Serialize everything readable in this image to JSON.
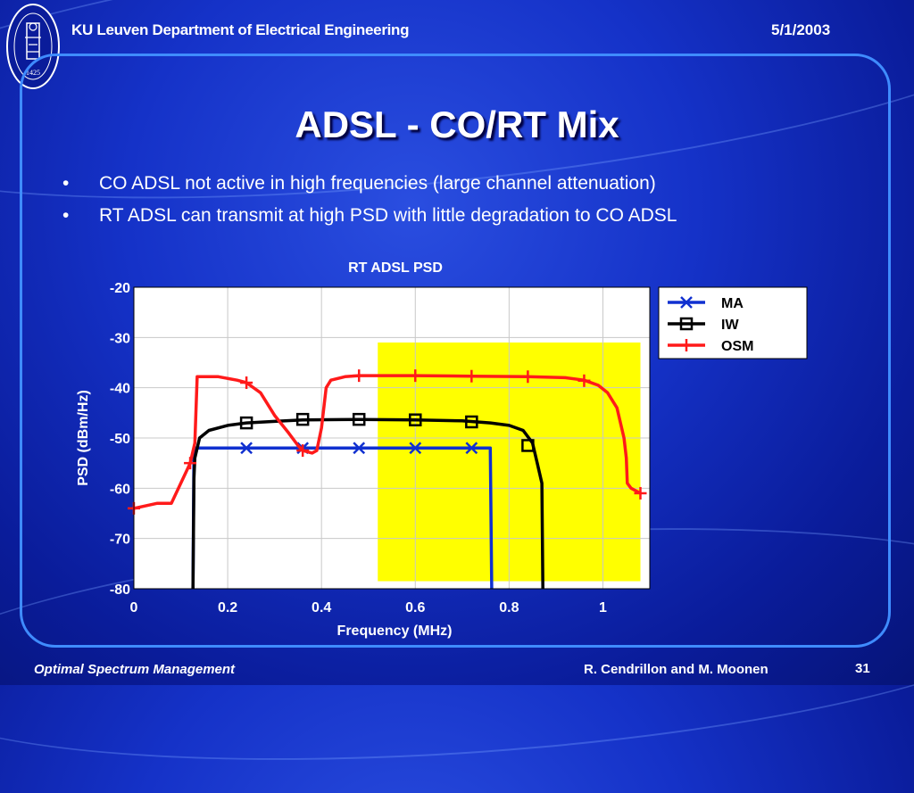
{
  "header": {
    "title": "KU Leuven Department of Electrical Engineering",
    "date": "5/1/2003",
    "seal_text": "1425"
  },
  "slide": {
    "title": "ADSL - CO/RT Mix",
    "bullets": [
      "CO ADSL not active in high frequencies (large channel attenuation)",
      "RT ADSL can transmit at high PSD with little degradation to CO ADSL"
    ]
  },
  "footer": {
    "left": "Optimal Spectrum Management",
    "right": "R. Cendrillon and M. Moonen",
    "page": "31"
  },
  "colors": {
    "ma": "#1030d0",
    "iw": "#000000",
    "osm": "#ff1a1a",
    "highlight": "#ffff00",
    "frame": "#3f8cff"
  },
  "chart_data": {
    "type": "line",
    "title": "RT ADSL PSD",
    "xlabel": "Frequency (MHz)",
    "ylabel": "PSD (dBm/Hz)",
    "xlim": [
      0,
      1.1
    ],
    "ylim": [
      -80,
      -20
    ],
    "xticks": [
      0,
      0.2,
      0.4,
      0.6,
      0.8,
      1
    ],
    "xtick_labels": [
      "0",
      "0.2",
      "0.4",
      "0.6",
      "0.8",
      "1"
    ],
    "yticks": [
      -80,
      -70,
      -60,
      -50,
      -40,
      -30,
      -20
    ],
    "ytick_labels": [
      "-80",
      "-70",
      "-60",
      "-50",
      "-40",
      "-30",
      "-20"
    ],
    "grid": true,
    "legend_position": "top-right, outside plot",
    "highlight_region": {
      "x": [
        0.52,
        1.08
      ],
      "y": [
        -78.5,
        -31
      ]
    },
    "series": [
      {
        "name": "MA",
        "marker": "x",
        "line": [
          [
            0.126,
            -80
          ],
          [
            0.128,
            -52
          ],
          [
            0.76,
            -52
          ],
          [
            0.763,
            -80
          ]
        ],
        "markers": [
          [
            0.24,
            -52
          ],
          [
            0.36,
            -52
          ],
          [
            0.48,
            -52
          ],
          [
            0.6,
            -52
          ],
          [
            0.72,
            -52
          ]
        ]
      },
      {
        "name": "IW",
        "marker": "square",
        "line": [
          [
            0.126,
            -80
          ],
          [
            0.128,
            -58
          ],
          [
            0.13,
            -54
          ],
          [
            0.14,
            -50
          ],
          [
            0.16,
            -48.5
          ],
          [
            0.2,
            -47.5
          ],
          [
            0.24,
            -47
          ],
          [
            0.3,
            -46.7
          ],
          [
            0.36,
            -46.4
          ],
          [
            0.48,
            -46.3
          ],
          [
            0.6,
            -46.4
          ],
          [
            0.7,
            -46.6
          ],
          [
            0.76,
            -47
          ],
          [
            0.8,
            -47.5
          ],
          [
            0.83,
            -48.5
          ],
          [
            0.85,
            -51
          ],
          [
            0.86,
            -55
          ],
          [
            0.87,
            -59
          ],
          [
            0.872,
            -80
          ]
        ],
        "markers": [
          [
            0.24,
            -47
          ],
          [
            0.36,
            -46.3
          ],
          [
            0.48,
            -46.3
          ],
          [
            0.6,
            -46.4
          ],
          [
            0.72,
            -46.8
          ],
          [
            0.84,
            -51.5
          ]
        ]
      },
      {
        "name": "OSM",
        "marker": "plus",
        "line": [
          [
            0,
            -64
          ],
          [
            0.05,
            -63
          ],
          [
            0.08,
            -63
          ],
          [
            0.12,
            -55
          ],
          [
            0.13,
            -51
          ],
          [
            0.135,
            -37.8
          ],
          [
            0.18,
            -37.8
          ],
          [
            0.22,
            -38.5
          ],
          [
            0.24,
            -39
          ],
          [
            0.27,
            -41
          ],
          [
            0.3,
            -45.5
          ],
          [
            0.33,
            -49
          ],
          [
            0.35,
            -51.5
          ],
          [
            0.36,
            -52.5
          ],
          [
            0.38,
            -53
          ],
          [
            0.39,
            -52.5
          ],
          [
            0.4,
            -48
          ],
          [
            0.41,
            -40
          ],
          [
            0.42,
            -38.5
          ],
          [
            0.45,
            -37.8
          ],
          [
            0.48,
            -37.6
          ],
          [
            0.6,
            -37.6
          ],
          [
            0.72,
            -37.7
          ],
          [
            0.84,
            -37.8
          ],
          [
            0.92,
            -38
          ],
          [
            0.96,
            -38.5
          ],
          [
            0.99,
            -39.5
          ],
          [
            1.01,
            -41
          ],
          [
            1.03,
            -44
          ],
          [
            1.045,
            -50
          ],
          [
            1.05,
            -54
          ],
          [
            1.052,
            -59
          ],
          [
            1.06,
            -60
          ],
          [
            1.08,
            -61
          ]
        ],
        "markers": [
          [
            0,
            -64
          ],
          [
            0.12,
            -55
          ],
          [
            0.24,
            -39
          ],
          [
            0.36,
            -52.5
          ],
          [
            0.48,
            -37.6
          ],
          [
            0.6,
            -37.6
          ],
          [
            0.72,
            -37.7
          ],
          [
            0.84,
            -37.8
          ],
          [
            0.96,
            -38.6
          ],
          [
            1.08,
            -61
          ]
        ]
      }
    ]
  }
}
